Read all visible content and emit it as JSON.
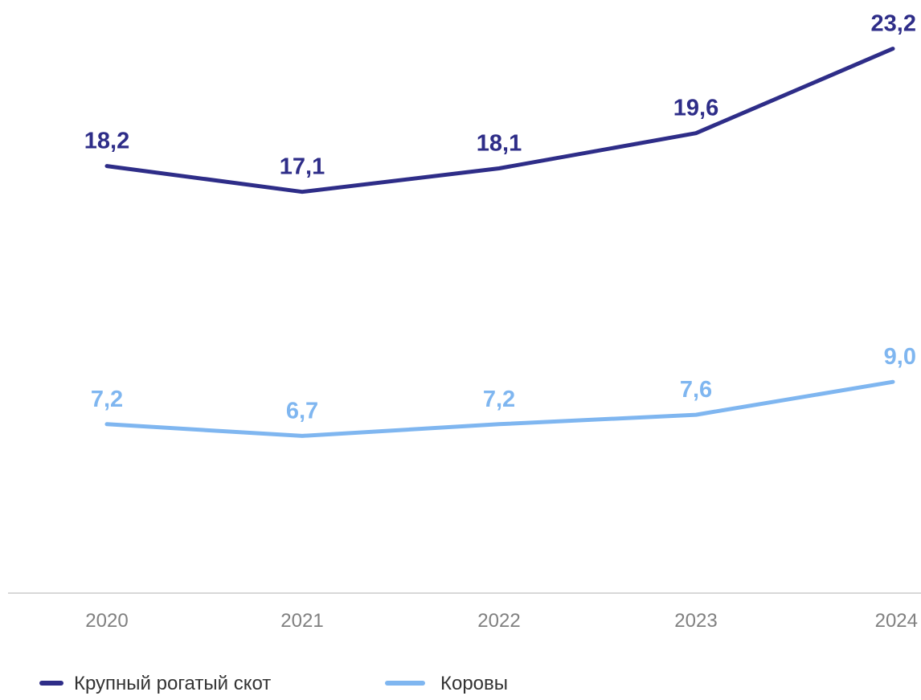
{
  "chart_data": {
    "type": "line",
    "categories": [
      "2020",
      "2021",
      "2022",
      "2023",
      "2024"
    ],
    "series": [
      {
        "name": "Крупный рогатый скот",
        "values": [
          18.2,
          17.1,
          18.1,
          19.6,
          23.2
        ],
        "labels": [
          "18,2",
          "17,1",
          "18,1",
          "19,6",
          "23,2"
        ],
        "color": "#2e2d88"
      },
      {
        "name": "Коровы",
        "values": [
          7.2,
          6.7,
          7.2,
          7.6,
          9.0
        ],
        "labels": [
          "7,2",
          "6,7",
          "7,2",
          "7,6",
          "9,0"
        ],
        "color": "#7fb6f0"
      }
    ],
    "title": "",
    "xlabel": "",
    "ylabel": "",
    "ylim": [
      0,
      25
    ],
    "grid": false,
    "legend": "bottom-left",
    "axis_color": "#cccccc"
  }
}
